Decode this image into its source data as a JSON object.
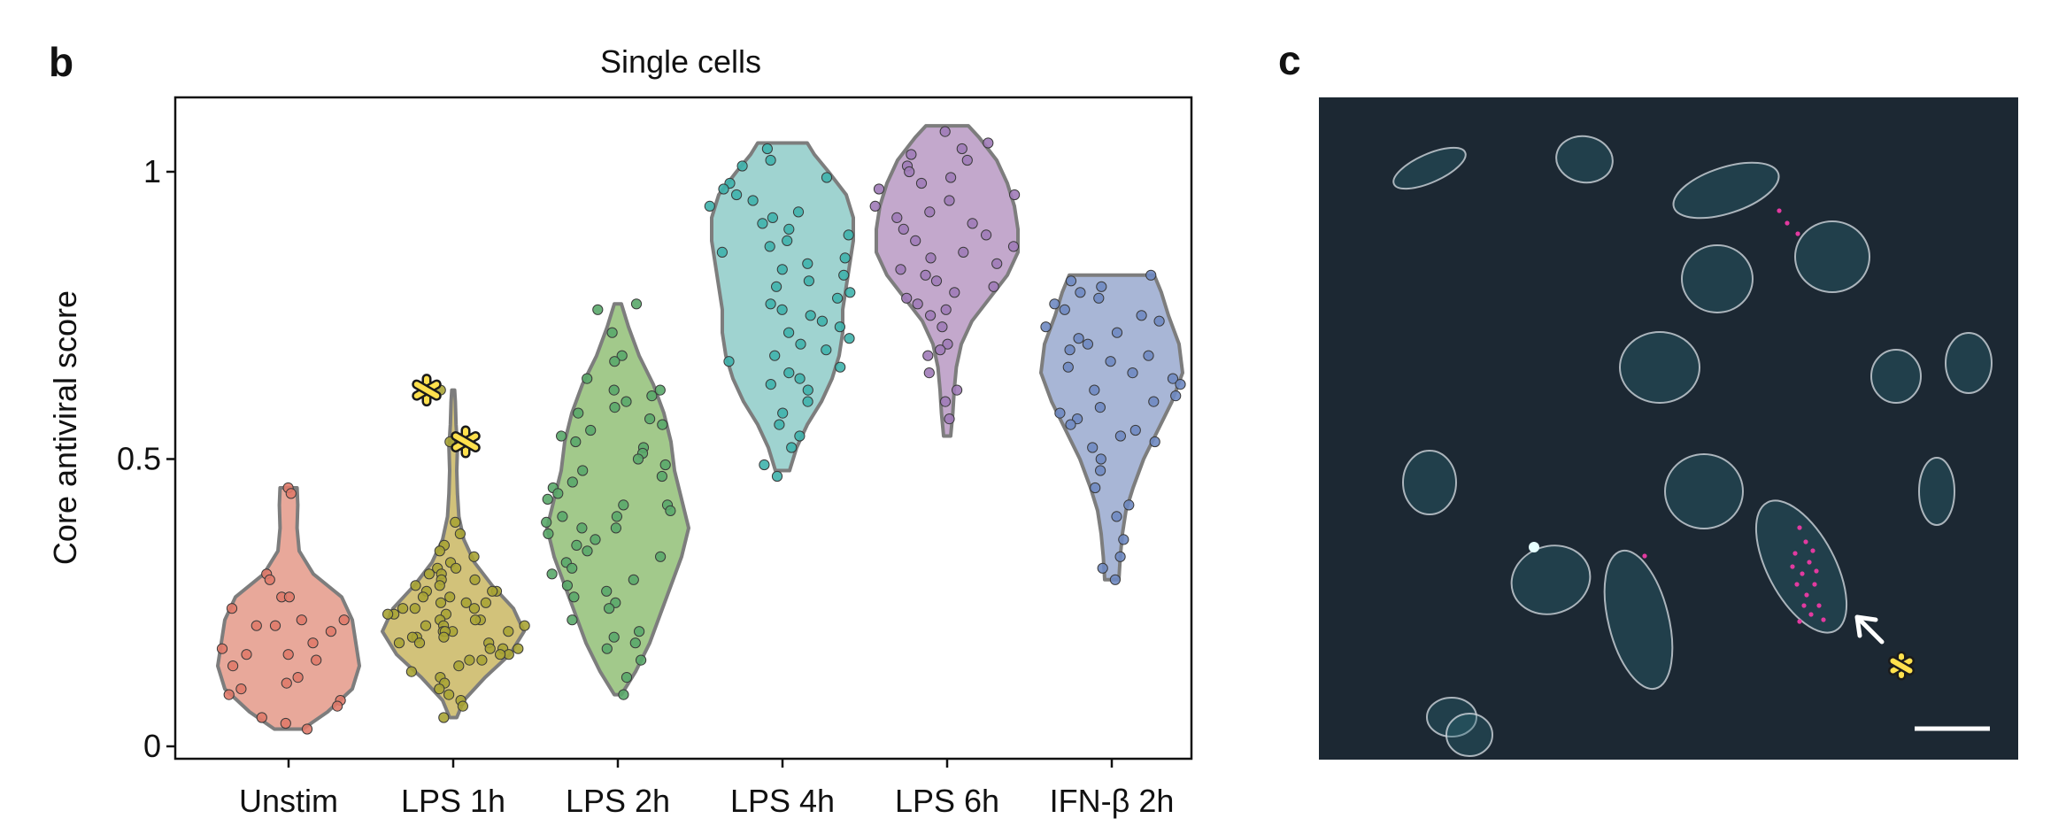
{
  "panels": {
    "b": "b",
    "c": "c"
  },
  "chart_data": {
    "type": "violin",
    "title": "Single cells",
    "xlabel": "",
    "ylabel": "Core antiviral score",
    "ylim": [
      0,
      1.1
    ],
    "yticks": [
      0,
      0.5,
      1
    ],
    "ytick_labels": [
      "0",
      "0.5",
      "1"
    ],
    "grid": false,
    "legend": "none",
    "categories": [
      "Unstim",
      "LPS 1h",
      "LPS 2h",
      "LPS 4h",
      "LPS 6h",
      "IFN-β 2h"
    ],
    "colors": [
      "#e8a89a",
      "#d2c27a",
      "#a2c98b",
      "#9fd3d0",
      "#c3a8cc",
      "#a8b6d6"
    ],
    "point_colors": [
      "#e07a6a",
      "#a9a435",
      "#5aa86a",
      "#3fb2ac",
      "#a07bb8",
      "#6f89c2"
    ],
    "series": [
      {
        "category": "Unstim",
        "min": 0.03,
        "max": 0.45,
        "profile": [
          [
            0.03,
            0.2
          ],
          [
            0.06,
            0.55
          ],
          [
            0.1,
            0.9
          ],
          [
            0.14,
            1.0
          ],
          [
            0.18,
            0.95
          ],
          [
            0.22,
            0.9
          ],
          [
            0.26,
            0.75
          ],
          [
            0.3,
            0.35
          ],
          [
            0.34,
            0.15
          ],
          [
            0.38,
            0.12
          ],
          [
            0.42,
            0.13
          ],
          [
            0.45,
            0.12
          ]
        ],
        "points": [
          0.45,
          0.44,
          0.3,
          0.29,
          0.26,
          0.26,
          0.24,
          0.22,
          0.22,
          0.21,
          0.21,
          0.2,
          0.18,
          0.17,
          0.16,
          0.16,
          0.15,
          0.14,
          0.12,
          0.11,
          0.1,
          0.09,
          0.08,
          0.07,
          0.05,
          0.04,
          0.03
        ]
      },
      {
        "category": "LPS 1h",
        "min": 0.05,
        "max": 0.62,
        "profile": [
          [
            0.05,
            0.05
          ],
          [
            0.08,
            0.15
          ],
          [
            0.12,
            0.45
          ],
          [
            0.16,
            0.8
          ],
          [
            0.2,
            1.0
          ],
          [
            0.24,
            0.85
          ],
          [
            0.28,
            0.55
          ],
          [
            0.32,
            0.3
          ],
          [
            0.36,
            0.15
          ],
          [
            0.4,
            0.08
          ],
          [
            0.44,
            0.06
          ],
          [
            0.48,
            0.05
          ],
          [
            0.52,
            0.06
          ],
          [
            0.56,
            0.04
          ],
          [
            0.6,
            0.03
          ],
          [
            0.62,
            0.02
          ]
        ],
        "points": [
          0.62,
          0.53,
          0.39,
          0.37,
          0.35,
          0.34,
          0.33,
          0.32,
          0.31,
          0.31,
          0.3,
          0.3,
          0.29,
          0.29,
          0.28,
          0.28,
          0.27,
          0.27,
          0.27,
          0.26,
          0.26,
          0.25,
          0.25,
          0.25,
          0.24,
          0.24,
          0.24,
          0.23,
          0.23,
          0.23,
          0.22,
          0.22,
          0.22,
          0.21,
          0.21,
          0.21,
          0.2,
          0.2,
          0.2,
          0.2,
          0.19,
          0.19,
          0.19,
          0.18,
          0.18,
          0.18,
          0.17,
          0.17,
          0.17,
          0.16,
          0.16,
          0.15,
          0.15,
          0.14,
          0.13,
          0.12,
          0.11,
          0.1,
          0.09,
          0.08,
          0.07,
          0.05
        ]
      },
      {
        "category": "LPS 2h",
        "min": 0.09,
        "max": 0.77,
        "profile": [
          [
            0.09,
            0.05
          ],
          [
            0.13,
            0.25
          ],
          [
            0.18,
            0.45
          ],
          [
            0.23,
            0.6
          ],
          [
            0.28,
            0.75
          ],
          [
            0.33,
            0.9
          ],
          [
            0.38,
            1.0
          ],
          [
            0.43,
            0.9
          ],
          [
            0.48,
            0.8
          ],
          [
            0.53,
            0.75
          ],
          [
            0.58,
            0.65
          ],
          [
            0.63,
            0.5
          ],
          [
            0.68,
            0.3
          ],
          [
            0.73,
            0.15
          ],
          [
            0.77,
            0.05
          ]
        ],
        "points": [
          0.77,
          0.76,
          0.72,
          0.68,
          0.67,
          0.64,
          0.62,
          0.62,
          0.61,
          0.6,
          0.59,
          0.58,
          0.57,
          0.56,
          0.55,
          0.54,
          0.53,
          0.52,
          0.51,
          0.5,
          0.49,
          0.48,
          0.47,
          0.46,
          0.45,
          0.44,
          0.43,
          0.42,
          0.42,
          0.41,
          0.4,
          0.4,
          0.39,
          0.38,
          0.38,
          0.37,
          0.36,
          0.35,
          0.34,
          0.33,
          0.32,
          0.31,
          0.3,
          0.29,
          0.28,
          0.27,
          0.26,
          0.25,
          0.24,
          0.22,
          0.2,
          0.19,
          0.18,
          0.17,
          0.15,
          0.12,
          0.09
        ]
      },
      {
        "category": "LPS 4h",
        "min": 0.48,
        "max": 1.05,
        "profile": [
          [
            0.48,
            0.1
          ],
          [
            0.52,
            0.2
          ],
          [
            0.56,
            0.35
          ],
          [
            0.6,
            0.55
          ],
          [
            0.64,
            0.7
          ],
          [
            0.68,
            0.8
          ],
          [
            0.72,
            0.85
          ],
          [
            0.76,
            0.85
          ],
          [
            0.8,
            0.9
          ],
          [
            0.84,
            0.95
          ],
          [
            0.88,
            1.0
          ],
          [
            0.92,
            1.0
          ],
          [
            0.96,
            0.9
          ],
          [
            1.0,
            0.65
          ],
          [
            1.03,
            0.45
          ],
          [
            1.05,
            0.35
          ]
        ],
        "points": [
          1.04,
          1.02,
          1.01,
          0.99,
          0.98,
          0.97,
          0.96,
          0.95,
          0.94,
          0.93,
          0.92,
          0.91,
          0.9,
          0.89,
          0.88,
          0.87,
          0.86,
          0.85,
          0.84,
          0.83,
          0.82,
          0.81,
          0.8,
          0.79,
          0.78,
          0.77,
          0.76,
          0.75,
          0.74,
          0.73,
          0.72,
          0.71,
          0.7,
          0.69,
          0.68,
          0.67,
          0.66,
          0.65,
          0.64,
          0.63,
          0.62,
          0.6,
          0.58,
          0.56,
          0.54,
          0.52,
          0.49,
          0.47
        ]
      },
      {
        "category": "LPS 6h",
        "min": 0.54,
        "max": 1.08,
        "profile": [
          [
            0.54,
            0.05
          ],
          [
            0.58,
            0.08
          ],
          [
            0.62,
            0.1
          ],
          [
            0.66,
            0.13
          ],
          [
            0.7,
            0.2
          ],
          [
            0.74,
            0.35
          ],
          [
            0.78,
            0.6
          ],
          [
            0.82,
            0.85
          ],
          [
            0.86,
            1.0
          ],
          [
            0.9,
            1.0
          ],
          [
            0.94,
            0.95
          ],
          [
            0.98,
            0.85
          ],
          [
            1.02,
            0.7
          ],
          [
            1.06,
            0.45
          ],
          [
            1.08,
            0.3
          ]
        ],
        "points": [
          1.07,
          1.05,
          1.04,
          1.03,
          1.02,
          1.01,
          1.0,
          0.99,
          0.98,
          0.97,
          0.96,
          0.95,
          0.94,
          0.93,
          0.92,
          0.91,
          0.9,
          0.89,
          0.88,
          0.87,
          0.86,
          0.85,
          0.84,
          0.83,
          0.82,
          0.81,
          0.8,
          0.79,
          0.78,
          0.77,
          0.76,
          0.75,
          0.73,
          0.7,
          0.69,
          0.68,
          0.65,
          0.62,
          0.6,
          0.57
        ]
      },
      {
        "category": "IFN-β 2h",
        "min": 0.29,
        "max": 0.82,
        "profile": [
          [
            0.29,
            0.1
          ],
          [
            0.33,
            0.12
          ],
          [
            0.37,
            0.15
          ],
          [
            0.41,
            0.2
          ],
          [
            0.45,
            0.3
          ],
          [
            0.5,
            0.45
          ],
          [
            0.55,
            0.65
          ],
          [
            0.6,
            0.85
          ],
          [
            0.65,
            1.0
          ],
          [
            0.7,
            0.95
          ],
          [
            0.75,
            0.8
          ],
          [
            0.79,
            0.7
          ],
          [
            0.82,
            0.6
          ]
        ],
        "points": [
          0.82,
          0.81,
          0.8,
          0.79,
          0.78,
          0.77,
          0.76,
          0.75,
          0.74,
          0.73,
          0.72,
          0.71,
          0.7,
          0.69,
          0.68,
          0.67,
          0.66,
          0.65,
          0.64,
          0.63,
          0.62,
          0.61,
          0.6,
          0.59,
          0.58,
          0.57,
          0.56,
          0.55,
          0.54,
          0.53,
          0.52,
          0.5,
          0.48,
          0.45,
          0.42,
          0.4,
          0.36,
          0.33,
          0.31,
          0.29
        ]
      }
    ],
    "annotations": [
      {
        "type": "asterisk",
        "category": "LPS 1h",
        "y": 0.62
      },
      {
        "type": "asterisk",
        "category": "LPS 1h",
        "y": 0.53
      }
    ]
  },
  "micrograph": {
    "background": "#1c2833",
    "outline_color": "#cfd6dc",
    "nucleus_color": "#2b6a78",
    "dot_color": "#e23aa0",
    "arrow_color": "#ffffff",
    "asterisk_color": "#ffe14d",
    "scale_bar_color": "#ffffff"
  }
}
